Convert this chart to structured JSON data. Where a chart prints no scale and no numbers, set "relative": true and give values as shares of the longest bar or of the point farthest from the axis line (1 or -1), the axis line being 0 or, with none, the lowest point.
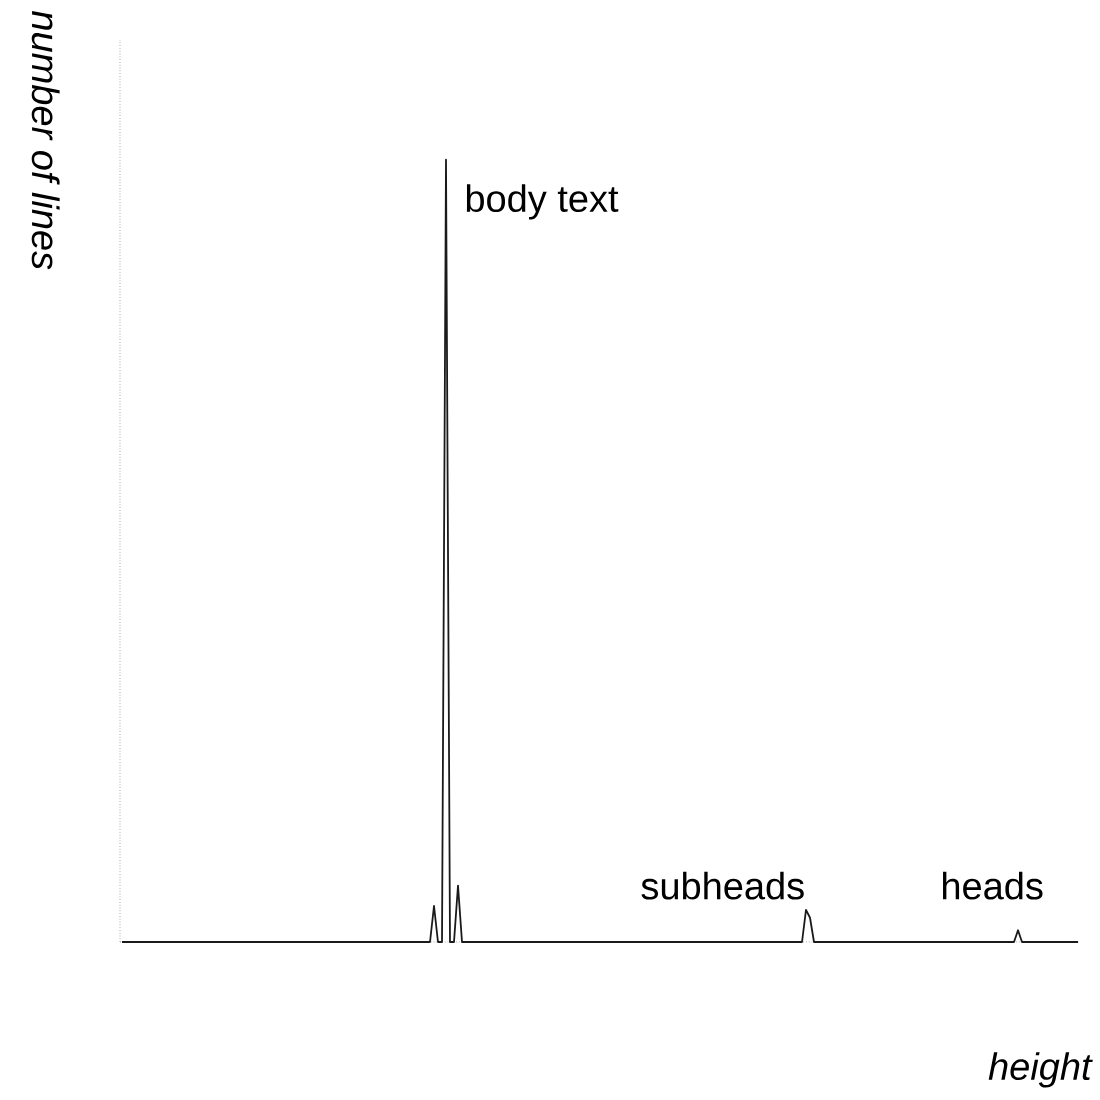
{
  "chart_data": {
    "type": "line",
    "relative": true,
    "xlabel": "height",
    "ylabel": "number of lines",
    "color": "#1a1a1a",
    "annotations": [
      "body text",
      "subheads",
      "heads"
    ],
    "categories": [
      null,
      null,
      null,
      null,
      null,
      null,
      null,
      null,
      null,
      null,
      null,
      null,
      null,
      null,
      null,
      null,
      null,
      null,
      null,
      null,
      null,
      null,
      null,
      null,
      null,
      null,
      null,
      null,
      null,
      null,
      null,
      null,
      null,
      null,
      null,
      null,
      null,
      null,
      null,
      null,
      null,
      null,
      null,
      null,
      null,
      null,
      null,
      null,
      null,
      null,
      null,
      null,
      null,
      null,
      null,
      null,
      null,
      null,
      null,
      null,
      null,
      null,
      null,
      null,
      null,
      null,
      null,
      null,
      null,
      null,
      null,
      null,
      null,
      null,
      null,
      null,
      null,
      null,
      null,
      null,
      null,
      null,
      null,
      null,
      null,
      null,
      null,
      null,
      null,
      null,
      null,
      null,
      null,
      null,
      null,
      null,
      null,
      null,
      null,
      null,
      null,
      null,
      null,
      null,
      null,
      null,
      null,
      null,
      null,
      null,
      null,
      null,
      null,
      null,
      null,
      null,
      null,
      null,
      null,
      null,
      null,
      null,
      null,
      null,
      null,
      null,
      null,
      null,
      null,
      null,
      null,
      null,
      null,
      null,
      null,
      null,
      null,
      null,
      null,
      null,
      null,
      null,
      null,
      null,
      null,
      null,
      null,
      null,
      null,
      null,
      null,
      null,
      null,
      null,
      null,
      null,
      null,
      null,
      null,
      null,
      null,
      null,
      null,
      null,
      null,
      null,
      null,
      null,
      null,
      null,
      null,
      null,
      null,
      null,
      null,
      null,
      null,
      null,
      null,
      null,
      null,
      null,
      null,
      null,
      null,
      null,
      null,
      null,
      null,
      null,
      null,
      null,
      null,
      null,
      null,
      null,
      null,
      null,
      null,
      null,
      null,
      null,
      null,
      null,
      null,
      null,
      null,
      null,
      null,
      null,
      null,
      null,
      null,
      null,
      null,
      null,
      null,
      null,
      null,
      null,
      null,
      null,
      null,
      null,
      null,
      null,
      null,
      null,
      null,
      null,
      null,
      null,
      null,
      null,
      null,
      null,
      null,
      null,
      null,
      null
    ],
    "values": [
      0,
      0,
      0,
      0,
      0,
      0,
      0,
      0,
      0,
      0,
      0,
      0,
      0,
      0,
      0,
      0,
      0,
      0,
      0,
      0,
      0,
      0,
      0,
      0,
      0,
      0,
      0,
      0,
      0,
      0,
      0,
      0,
      0,
      0,
      0,
      0,
      0,
      0,
      0,
      0,
      0,
      0,
      0,
      0,
      0,
      0,
      0,
      0,
      0,
      0,
      0,
      0,
      0,
      0,
      0,
      0,
      0,
      0,
      0,
      0,
      0,
      0,
      0,
      0,
      0,
      0,
      0,
      0,
      0,
      0,
      0,
      0,
      0,
      0,
      0,
      0,
      0,
      0,
      0.046,
      0,
      0,
      1,
      0,
      0,
      0.072,
      0,
      0,
      0,
      0,
      0,
      0,
      0,
      0,
      0,
      0,
      0,
      0,
      0,
      0,
      0,
      0,
      0,
      0,
      0,
      0,
      0,
      0,
      0,
      0,
      0,
      0,
      0,
      0,
      0,
      0,
      0,
      0,
      0,
      0,
      0,
      0,
      0,
      0,
      0,
      0,
      0,
      0,
      0,
      0,
      0,
      0,
      0,
      0,
      0,
      0,
      0,
      0,
      0,
      0,
      0,
      0,
      0,
      0,
      0,
      0,
      0,
      0,
      0,
      0,
      0,
      0,
      0,
      0,
      0,
      0,
      0,
      0,
      0,
      0,
      0,
      0,
      0,
      0,
      0,
      0,
      0,
      0,
      0,
      0,
      0,
      0,
      0.041,
      0.031,
      0,
      0,
      0,
      0,
      0,
      0,
      0,
      0,
      0,
      0,
      0,
      0,
      0,
      0,
      0,
      0,
      0,
      0,
      0,
      0,
      0,
      0,
      0,
      0,
      0,
      0,
      0,
      0,
      0,
      0,
      0,
      0,
      0,
      0,
      0,
      0,
      0,
      0,
      0,
      0,
      0,
      0,
      0,
      0,
      0,
      0,
      0,
      0,
      0,
      0,
      0,
      0.015,
      0,
      0,
      0,
      0,
      0,
      0,
      0,
      0,
      0,
      0,
      0,
      0,
      0,
      0,
      0
    ]
  }
}
